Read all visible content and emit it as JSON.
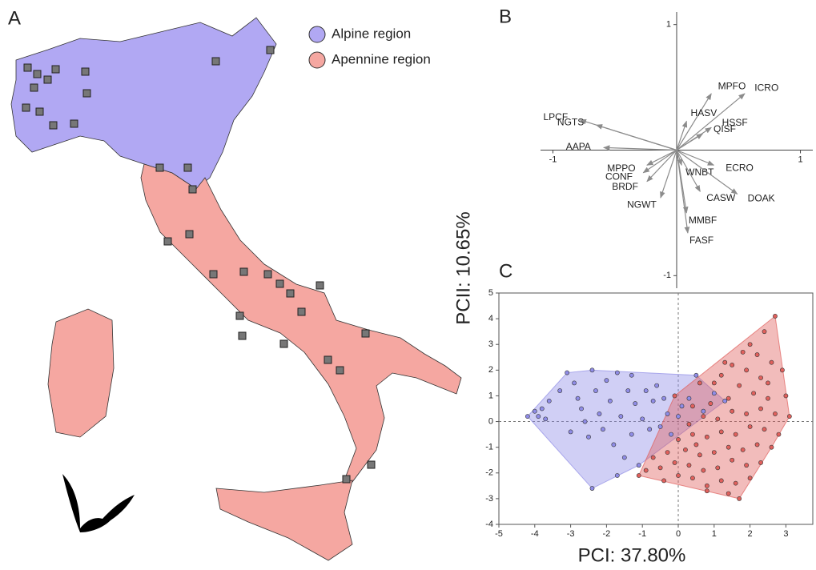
{
  "panel_labels": [
    "A",
    "B",
    "C"
  ],
  "map": {
    "legend": [
      {
        "name": "Alpine region",
        "color": "#b1a8f3"
      },
      {
        "name": "Apennine region",
        "color": "#f5a7a1"
      }
    ]
  },
  "chart_data": [
    {
      "type": "biplot",
      "labels": [
        "LPCF",
        "NGTS",
        "AAPA",
        "MPPO",
        "CONF",
        "BRDF",
        "NGWT",
        "MPFO",
        "ICRO",
        "HASV",
        "HSSF",
        "QISF",
        "WNBT",
        "ECRO",
        "DOAK",
        "CASW",
        "MMBF",
        "FASF"
      ],
      "x": [
        -0.78,
        -0.65,
        -0.59,
        -0.24,
        -0.27,
        -0.24,
        -0.13,
        0.28,
        0.55,
        0.08,
        0.28,
        0.21,
        0.04,
        0.3,
        0.49,
        0.19,
        0.08,
        0.09
      ],
      "y": [
        0.24,
        0.2,
        0.02,
        -0.12,
        -0.18,
        -0.25,
        -0.38,
        0.45,
        0.45,
        0.23,
        0.18,
        0.13,
        -0.12,
        -0.12,
        -0.35,
        -0.33,
        -0.5,
        -0.66
      ],
      "color": "#8c8c8c",
      "xlim": [
        -1.1,
        1.1
      ],
      "ylim": [
        -1.1,
        1.1
      ],
      "xticks": [
        -1,
        1
      ],
      "yticks": [
        1,
        -1
      ]
    },
    {
      "type": "scatter",
      "xlabel": "PCI: 37.80%",
      "ylabel": "PCII: 10.65%",
      "xlim": [
        -5,
        3.75
      ],
      "ylim": [
        -4,
        5
      ],
      "xticks": [
        -5,
        -4,
        -3,
        -2,
        -1,
        0,
        1,
        2,
        3
      ],
      "yticks": [
        -4,
        -3,
        -2,
        -1,
        0,
        1,
        2,
        3,
        4,
        5
      ],
      "series": [
        {
          "color": "#8f8ce6",
          "x": [
            -4.2,
            -4.0,
            -3.9,
            -3.8,
            -3.7,
            -3.6,
            -3.3,
            -3.1,
            -2.9,
            -2.8,
            -2.7,
            -2.6,
            -2.5,
            -2.4,
            -2.3,
            -2.2,
            -2.1,
            -2.0,
            -1.9,
            -1.8,
            -1.7,
            -1.6,
            -1.5,
            -1.4,
            -1.3,
            -1.3,
            -1.2,
            -1.1,
            -1.0,
            -0.9,
            -0.8,
            -0.7,
            -0.6,
            -0.5,
            -0.4,
            -0.3,
            -0.2,
            0.1,
            0.3,
            0.5,
            0.7,
            1.0,
            1.3,
            -2.4,
            -3.0,
            -1.7,
            0.0
          ],
          "y": [
            0.2,
            0.4,
            0.2,
            0.5,
            0.1,
            0.8,
            1.2,
            1.9,
            1.5,
            0.9,
            0.5,
            0.0,
            -0.6,
            2.0,
            1.2,
            0.3,
            -0.3,
            1.6,
            0.8,
            -0.9,
            1.9,
            0.2,
            -1.4,
            1.2,
            1.8,
            -0.5,
            0.7,
            -1.7,
            0.1,
            1.2,
            -0.3,
            0.8,
            1.4,
            -0.2,
            0.9,
            0.3,
            -0.5,
            0.6,
            0.9,
            1.8,
            0.4,
            1.1,
            0.8,
            -2.6,
            -0.4,
            -2.1,
            0.2
          ]
        },
        {
          "color": "#e0605c",
          "x": [
            2.7,
            2.4,
            2.2,
            2.0,
            1.8,
            2.6,
            2.9,
            1.5,
            1.2,
            1.0,
            0.6,
            2.3,
            1.7,
            3.0,
            2.5,
            2.1,
            1.4,
            0.9,
            0.4,
            -0.1,
            3.1,
            2.7,
            2.3,
            1.9,
            1.5,
            1.1,
            0.7,
            0.3,
            2.4,
            2.0,
            1.6,
            1.2,
            0.8,
            0.4,
            0.0,
            2.6,
            2.2,
            1.8,
            1.4,
            1.0,
            0.6,
            0.2,
            -0.3,
            2.3,
            1.9,
            1.5,
            1.1,
            0.7,
            0.3,
            -0.1,
            -0.5,
            -0.9,
            2.0,
            1.6,
            1.2,
            0.8,
            0.4,
            0.0,
            -0.4,
            -1.1,
            1.7,
            1.4,
            0.8,
            2.8,
            2.5,
            1.9,
            0.5,
            1.3,
            -0.7
          ],
          "y": [
            4.1,
            3.5,
            2.6,
            3.0,
            2.7,
            2.3,
            2.0,
            2.2,
            1.8,
            1.5,
            1.5,
            1.7,
            1.4,
            1.0,
            0.9,
            1.1,
            0.9,
            0.7,
            0.6,
            1.0,
            0.2,
            0.3,
            0.5,
            0.3,
            0.4,
            0.1,
            0.2,
            -0.1,
            -0.3,
            -0.2,
            -0.5,
            -0.4,
            -0.6,
            -0.5,
            -0.7,
            -1.0,
            -0.9,
            -1.1,
            -1.0,
            -1.2,
            -1.3,
            -1.1,
            -1.2,
            -1.6,
            -1.7,
            -1.5,
            -1.8,
            -1.9,
            -1.7,
            -1.6,
            -1.8,
            -1.9,
            -2.2,
            -2.4,
            -2.3,
            -2.5,
            -2.2,
            -2.1,
            -2.3,
            -2.1,
            -3.0,
            -2.8,
            -2.7,
            -0.5,
            1.5,
            2.0,
            -0.9,
            2.3,
            -1.4
          ]
        }
      ]
    }
  ]
}
